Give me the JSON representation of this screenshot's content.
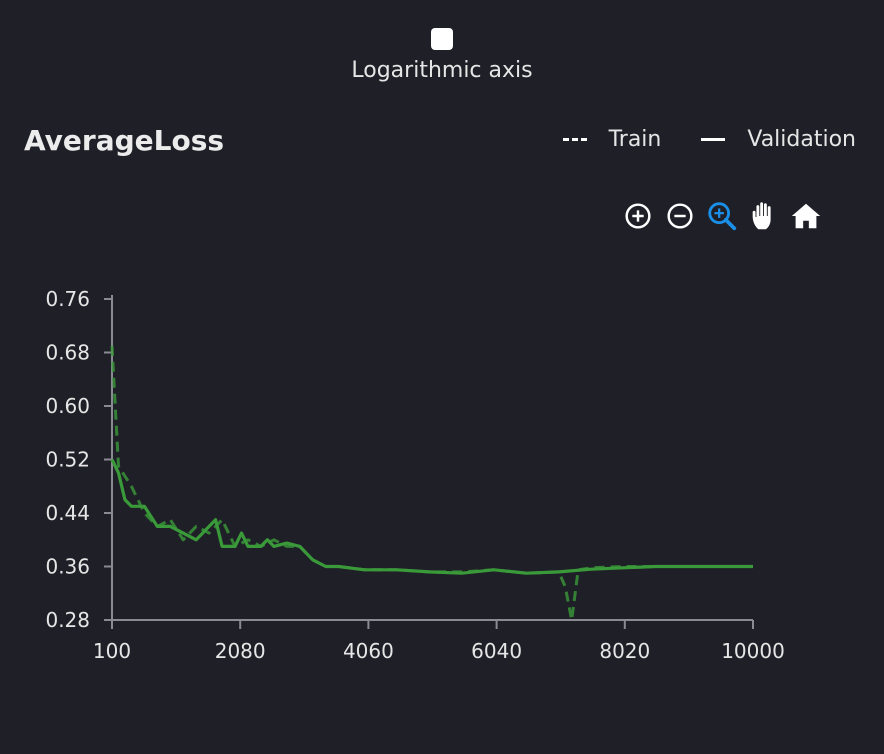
{
  "controls": {
    "log_axis_label": "Logarithmic axis",
    "log_axis_checked": false
  },
  "title": "AverageLoss",
  "legend": {
    "train_label": "Train",
    "validation_label": "Validation"
  },
  "toolbar": {
    "icons": [
      "zoom-in-icon",
      "zoom-out-icon",
      "zoom-select-icon",
      "pan-hand-icon",
      "home-icon"
    ],
    "active_tool": "zoom-select-icon",
    "active_color": "#1a8fe8"
  },
  "colors": {
    "background": "#1f1f27",
    "axis": "#8a8a92",
    "series": "#3a9a3a"
  },
  "chart_data": {
    "type": "line",
    "title": "AverageLoss",
    "xlabel": "",
    "ylabel": "",
    "xlim": [
      100,
      10000
    ],
    "ylim": [
      0.28,
      0.76
    ],
    "x_ticks": [
      "100",
      "2080",
      "4060",
      "6040",
      "8020",
      "10000"
    ],
    "y_ticks": [
      "0.76",
      "0.68",
      "0.60",
      "0.52",
      "0.44",
      "0.36",
      "0.28"
    ],
    "x_tick_values": [
      100,
      2080,
      4060,
      6040,
      8020,
      10000
    ],
    "y_tick_values": [
      0.76,
      0.68,
      0.6,
      0.52,
      0.44,
      0.36,
      0.28
    ],
    "grid": false,
    "legend_position": "top-right",
    "series": [
      {
        "name": "Train",
        "style": "dashed",
        "x": [
          100,
          200,
          400,
          600,
          800,
          1000,
          1200,
          1400,
          1600,
          1800,
          2000,
          2200,
          2400,
          2600,
          2800,
          3000,
          3200,
          3400,
          3600,
          4000,
          4500,
          5000,
          5500,
          6000,
          6500,
          7000,
          7100,
          7200,
          7300,
          7500,
          8000,
          8500,
          9000,
          9500,
          10000
        ],
        "values": [
          0.69,
          0.51,
          0.48,
          0.44,
          0.42,
          0.43,
          0.4,
          0.42,
          0.41,
          0.43,
          0.39,
          0.4,
          0.39,
          0.4,
          0.39,
          0.39,
          0.37,
          0.36,
          0.36,
          0.355,
          0.355,
          0.352,
          0.352,
          0.355,
          0.35,
          0.352,
          0.33,
          0.28,
          0.355,
          0.358,
          0.36,
          0.36,
          0.36,
          0.36,
          0.36
        ]
      },
      {
        "name": "Validation",
        "style": "solid",
        "x": [
          100,
          200,
          300,
          400,
          600,
          800,
          1000,
          1200,
          1400,
          1600,
          1700,
          1800,
          2000,
          2100,
          2200,
          2400,
          2500,
          2600,
          2800,
          3000,
          3200,
          3400,
          3600,
          4000,
          4500,
          5000,
          5500,
          6000,
          6500,
          7000,
          7500,
          8000,
          8500,
          9000,
          9500,
          10000
        ],
        "values": [
          0.52,
          0.5,
          0.46,
          0.45,
          0.45,
          0.42,
          0.42,
          0.41,
          0.4,
          0.42,
          0.43,
          0.39,
          0.39,
          0.41,
          0.39,
          0.39,
          0.4,
          0.39,
          0.395,
          0.39,
          0.37,
          0.36,
          0.36,
          0.355,
          0.355,
          0.352,
          0.35,
          0.355,
          0.35,
          0.352,
          0.356,
          0.358,
          0.36,
          0.36,
          0.36,
          0.36
        ]
      }
    ]
  }
}
